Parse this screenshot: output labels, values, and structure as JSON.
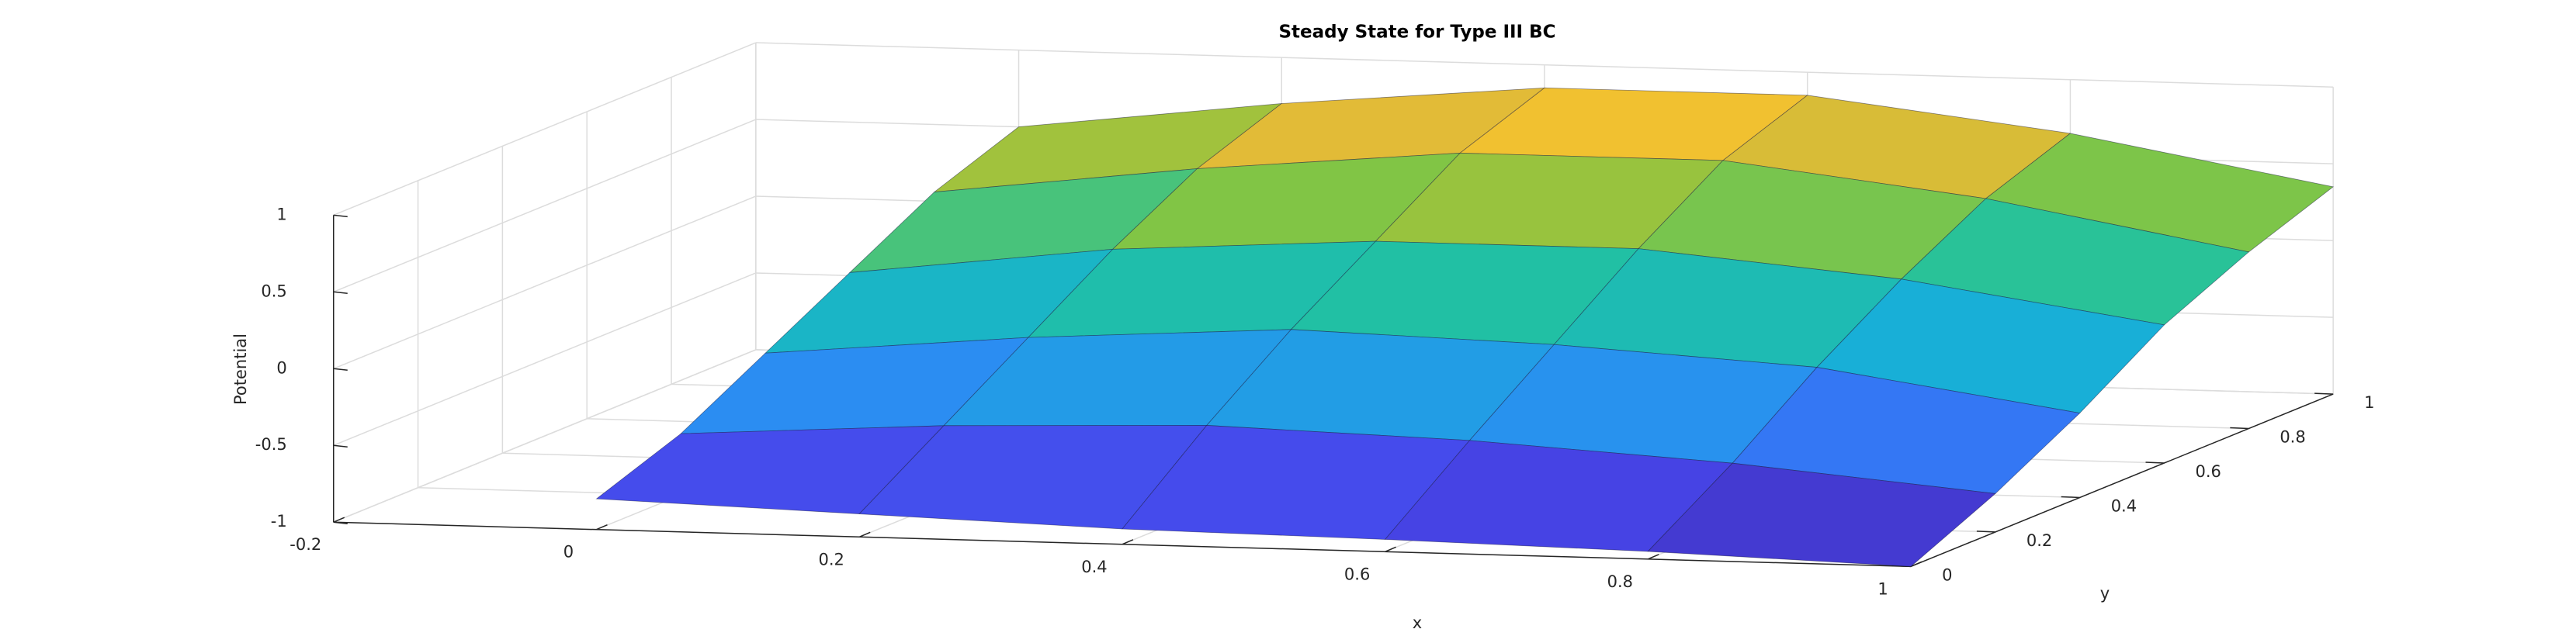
{
  "chart_data": {
    "type": "surface",
    "title": "Steady State for Type III BC",
    "x_label": "x",
    "y_label": "y",
    "z_label": "Potential",
    "x": [
      0,
      0.2,
      0.4,
      0.6,
      0.8,
      1
    ],
    "y": [
      0,
      0.2,
      0.4,
      0.6,
      0.8,
      1
    ],
    "z": [
      [
        -0.8,
        -0.85,
        -0.9,
        -0.92,
        -0.95,
        -1
      ],
      [
        -0.6,
        -0.5,
        -0.45,
        -0.5,
        -0.6,
        -0.75
      ],
      [
        -0.3,
        -0.15,
        -0.05,
        -0.1,
        -0.2,
        -0.45
      ],
      [
        0,
        0.2,
        0.3,
        0.3,
        0.15,
        -0.1
      ],
      [
        0.3,
        0.5,
        0.65,
        0.65,
        0.45,
        0.15
      ],
      [
        0.5,
        0.7,
        0.85,
        0.85,
        0.65,
        0.35
      ]
    ],
    "xlim": [
      -0.2,
      1
    ],
    "ylim": [
      0,
      1
    ],
    "zlim": [
      -1,
      1
    ],
    "xticks": [
      -0.2,
      0,
      0.2,
      0.4,
      0.6,
      0.8,
      1
    ],
    "yticks": [
      0,
      0.2,
      0.4,
      0.6,
      0.8,
      1
    ],
    "zticks": [
      -1,
      -0.5,
      0,
      0.5,
      1
    ],
    "grid": true,
    "colormap": [
      "#3e26a8",
      "#4746eb",
      "#2e87f7",
      "#17b0d6",
      "#22c29e",
      "#87c540",
      "#f0b935",
      "#f9fb0e"
    ]
  }
}
